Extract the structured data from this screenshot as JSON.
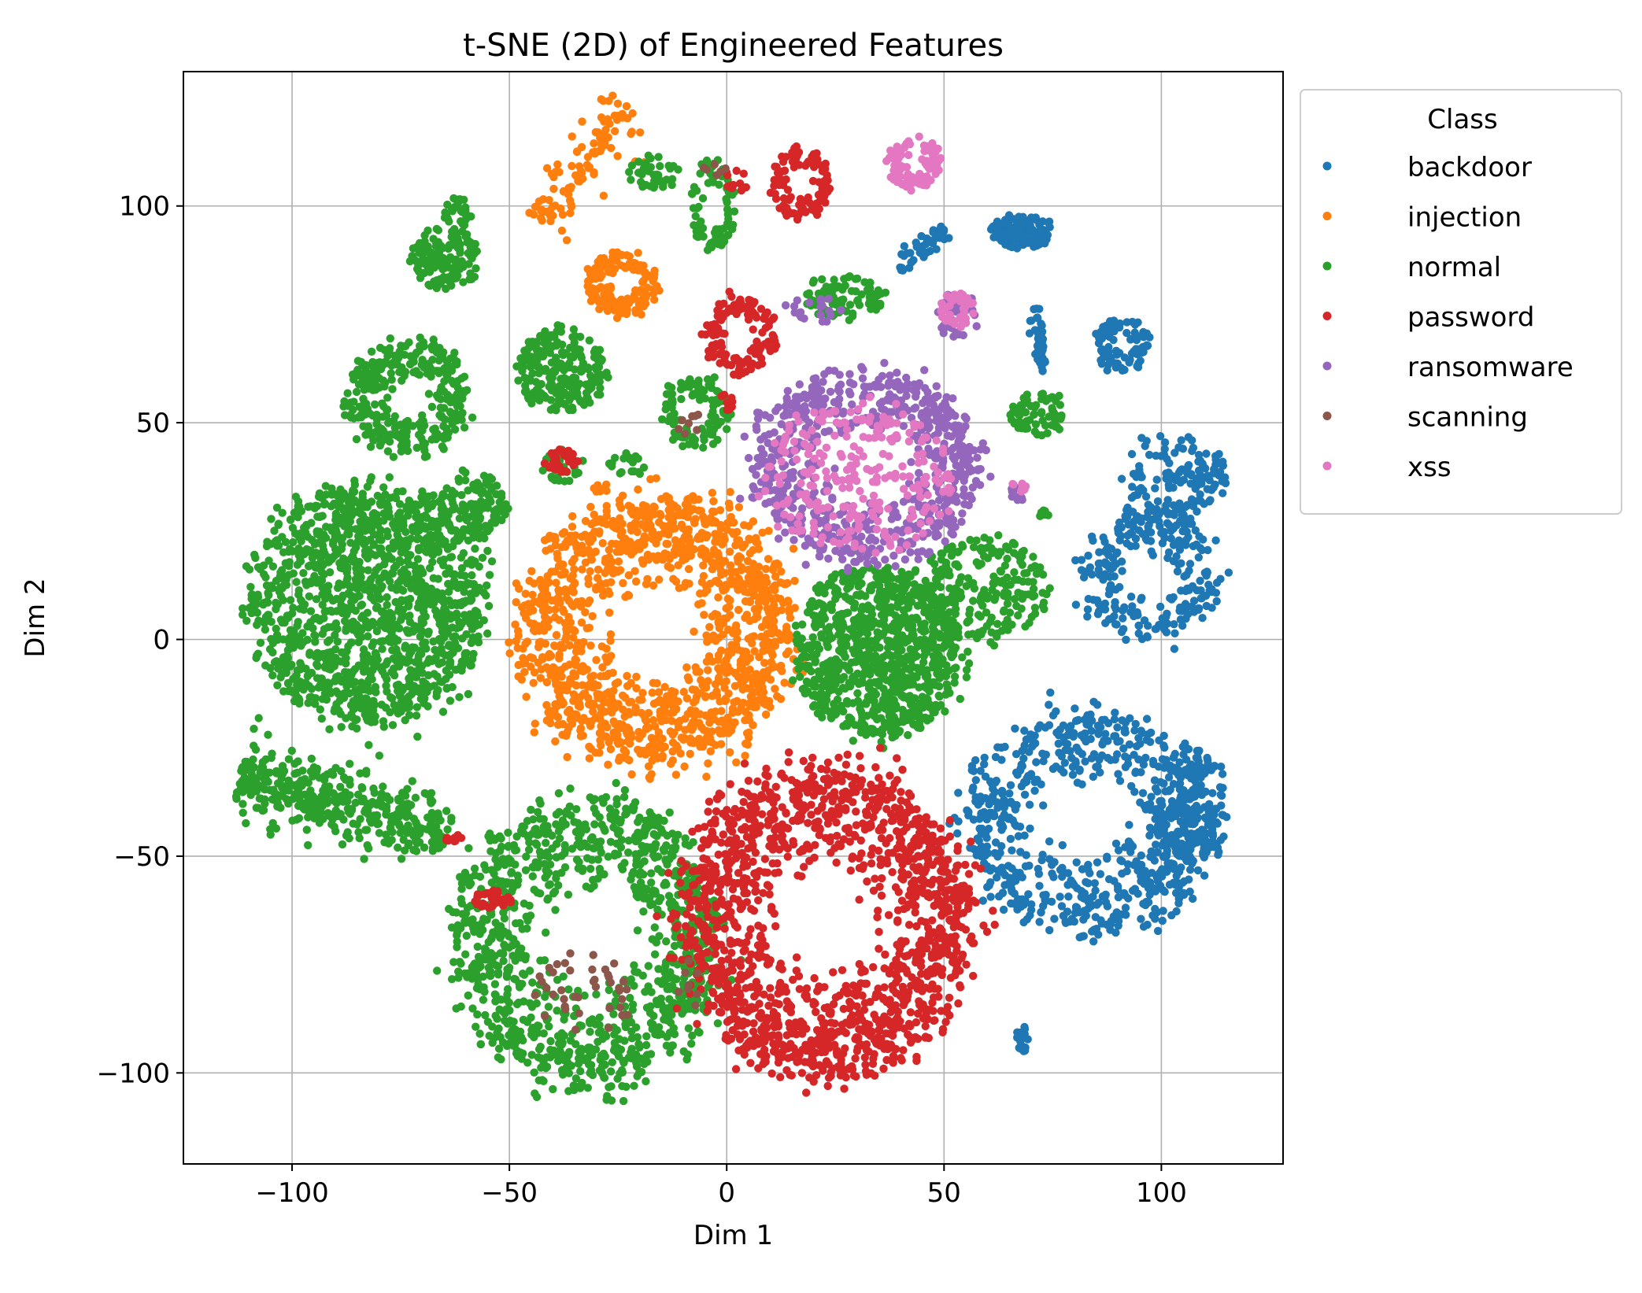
{
  "chart_data": {
    "type": "scatter",
    "title": "t-SNE (2D) of Engineered Features",
    "xlabel": "Dim 1",
    "ylabel": "Dim 2",
    "xlim": [
      -125,
      128
    ],
    "ylim": [
      -121,
      131
    ],
    "xticks": [
      -100,
      -50,
      0,
      50,
      100
    ],
    "yticks": [
      -100,
      -50,
      0,
      50,
      100
    ],
    "xtick_labels": [
      "−100",
      "−50",
      "0",
      "50",
      "100"
    ],
    "ytick_labels": [
      "−100",
      "−50",
      "0",
      "50",
      "100"
    ],
    "grid": true,
    "legend": {
      "title": "Class",
      "placement": "outside-right-top"
    },
    "series": [
      {
        "name": "backdoor",
        "color": "#1f77b4",
        "clusters": [
          {
            "center": [
              68,
              94
            ],
            "spread": [
              7,
              4
            ],
            "shape": "blob",
            "n": 110
          },
          {
            "center": [
              45,
              90
            ],
            "spread": [
              5,
              3
            ],
            "shape": "band",
            "angle": 40,
            "length": 14,
            "n": 45
          },
          {
            "center": [
              72,
              69
            ],
            "spread": [
              2,
              7
            ],
            "shape": "band",
            "angle": 95,
            "length": 16,
            "n": 45
          },
          {
            "center": [
              91,
              68
            ],
            "spread": [
              6,
              6
            ],
            "shape": "ring",
            "n": 90
          },
          {
            "center": [
              103,
              38
            ],
            "spread": [
              12,
              9
            ],
            "shape": "blob",
            "n": 130
          },
          {
            "center": [
              98,
              15
            ],
            "spread": [
              16,
              15
            ],
            "shape": "ring",
            "n": 260
          },
          {
            "center": [
              83,
              -42
            ],
            "spread": [
              28,
              26
            ],
            "shape": "ring",
            "n": 700
          },
          {
            "center": [
              107,
              -40
            ],
            "spread": [
              8,
              15
            ],
            "shape": "blob",
            "n": 170
          },
          {
            "center": [
              68,
              -92
            ],
            "spread": [
              1.5,
              3
            ],
            "shape": "blob",
            "n": 25
          }
        ]
      },
      {
        "name": "injection",
        "color": "#ff7f0e",
        "clusters": [
          {
            "center": [
              -33,
              110
            ],
            "spread": [
              8,
              8
            ],
            "shape": "band",
            "angle": 55,
            "length": 34,
            "n": 110
          },
          {
            "center": [
              -24,
              82
            ],
            "spread": [
              8,
              7
            ],
            "shape": "ring",
            "n": 150
          },
          {
            "center": [
              -16,
              2
            ],
            "spread": [
              31,
              31
            ],
            "shape": "ring",
            "n": 1300
          },
          {
            "center": [
              -29,
              35
            ],
            "spread": [
              2,
              1
            ],
            "shape": "blob",
            "n": 8
          }
        ]
      },
      {
        "name": "normal",
        "color": "#2ca02c",
        "clusters": [
          {
            "center": [
              -17,
              108
            ],
            "spread": [
              6,
              4
            ],
            "shape": "blob",
            "n": 40
          },
          {
            "center": [
              -3,
              100
            ],
            "spread": [
              5,
              10
            ],
            "shape": "ring",
            "n": 80
          },
          {
            "center": [
              -65,
              88
            ],
            "spread": [
              8,
              7
            ],
            "shape": "blob",
            "n": 140
          },
          {
            "center": [
              -62,
              98
            ],
            "spread": [
              3,
              4
            ],
            "shape": "blob",
            "n": 30
          },
          {
            "center": [
              27,
              79
            ],
            "spread": [
              9,
              5
            ],
            "shape": "blob",
            "n": 90
          },
          {
            "center": [
              -38,
              62
            ],
            "spread": [
              10,
              10
            ],
            "shape": "blob",
            "n": 220
          },
          {
            "center": [
              -73,
              56
            ],
            "spread": [
              14,
              13
            ],
            "shape": "ring",
            "n": 320
          },
          {
            "center": [
              -7,
              52
            ],
            "spread": [
              8,
              8
            ],
            "shape": "ring",
            "n": 100
          },
          {
            "center": [
              72,
              52
            ],
            "spread": [
              7,
              5
            ],
            "shape": "blob",
            "n": 70
          },
          {
            "center": [
              -38,
              40
            ],
            "spread": [
              5,
              4
            ],
            "shape": "blob",
            "n": 30
          },
          {
            "center": [
              -23,
              40
            ],
            "spread": [
              4,
              3
            ],
            "shape": "blob",
            "n": 20
          },
          {
            "center": [
              -59,
              31
            ],
            "spread": [
              8,
              8
            ],
            "shape": "blob",
            "n": 130
          },
          {
            "center": [
              -83,
              8
            ],
            "spread": [
              27,
              28
            ],
            "shape": "blob",
            "n": 1350
          },
          {
            "center": [
              60,
              12
            ],
            "spread": [
              14,
              12
            ],
            "shape": "blob",
            "n": 210
          },
          {
            "center": [
              35,
              -3
            ],
            "spread": [
              19,
              20
            ],
            "shape": "blob",
            "n": 900
          },
          {
            "center": [
              -88,
              -38
            ],
            "spread": [
              25,
              12
            ],
            "shape": "band",
            "angle": -15,
            "length": 50,
            "n": 420
          },
          {
            "center": [
              -32,
              -70
            ],
            "spread": [
              30,
              33
            ],
            "shape": "ring",
            "n": 1100
          },
          {
            "center": [
              73,
              29
            ],
            "spread": [
              2,
              1
            ],
            "shape": "blob",
            "n": 8
          }
        ]
      },
      {
        "name": "password",
        "color": "#d62728",
        "clusters": [
          {
            "center": [
              17,
              105
            ],
            "spread": [
              7,
              8
            ],
            "shape": "ring",
            "n": 110
          },
          {
            "center": [
              2,
              106
            ],
            "spread": [
              3,
              3
            ],
            "shape": "blob",
            "n": 12
          },
          {
            "center": [
              3,
              70
            ],
            "spread": [
              8,
              9
            ],
            "shape": "ring",
            "n": 130
          },
          {
            "center": [
              0,
              55
            ],
            "spread": [
              2,
              2
            ],
            "shape": "blob",
            "n": 10
          },
          {
            "center": [
              -38,
              41
            ],
            "spread": [
              4,
              3
            ],
            "shape": "blob",
            "n": 30
          },
          {
            "center": [
              -63,
              -46
            ],
            "spread": [
              2,
              1
            ],
            "shape": "blob",
            "n": 12
          },
          {
            "center": [
              -54,
              -60
            ],
            "spread": [
              5,
              2
            ],
            "shape": "blob",
            "n": 30
          },
          {
            "center": [
              23,
              -65
            ],
            "spread": [
              33,
              35
            ],
            "shape": "ring",
            "n": 1500
          }
        ]
      },
      {
        "name": "ransomware",
        "color": "#9467bd",
        "clusters": [
          {
            "center": [
              20,
              76
            ],
            "spread": [
              7,
              3
            ],
            "shape": "blob",
            "n": 20
          },
          {
            "center": [
              53,
              75
            ],
            "spread": [
              5,
              5
            ],
            "shape": "blob",
            "n": 40
          },
          {
            "center": [
              32,
              40
            ],
            "spread": [
              26,
              22
            ],
            "shape": "ring",
            "n": 700
          },
          {
            "center": [
              67,
              34
            ],
            "spread": [
              2,
              2
            ],
            "shape": "blob",
            "n": 10
          }
        ]
      },
      {
        "name": "scanning",
        "color": "#8c564b",
        "clusters": [
          {
            "center": [
              -4,
              108
            ],
            "spread": [
              4,
              2
            ],
            "shape": "blob",
            "n": 6
          },
          {
            "center": [
              -7,
              50
            ],
            "spread": [
              4,
              4
            ],
            "shape": "blob",
            "n": 8
          },
          {
            "center": [
              -33,
              -82
            ],
            "spread": [
              12,
              10
            ],
            "shape": "blob",
            "n": 40
          },
          {
            "center": [
              -9,
              -80
            ],
            "spread": [
              3,
              6
            ],
            "shape": "blob",
            "n": 8
          }
        ]
      },
      {
        "name": "xss",
        "color": "#e377c2",
        "clusters": [
          {
            "center": [
              43,
              110
            ],
            "spread": [
              6,
              6
            ],
            "shape": "ring",
            "n": 90
          },
          {
            "center": [
              53,
              76
            ],
            "spread": [
              4,
              4
            ],
            "shape": "ring",
            "n": 45
          },
          {
            "center": [
              30,
              38
            ],
            "spread": [
              22,
              18
            ],
            "shape": "blob",
            "n": 260
          },
          {
            "center": [
              67,
              35
            ],
            "spread": [
              2,
              1
            ],
            "shape": "blob",
            "n": 8
          }
        ]
      }
    ]
  }
}
